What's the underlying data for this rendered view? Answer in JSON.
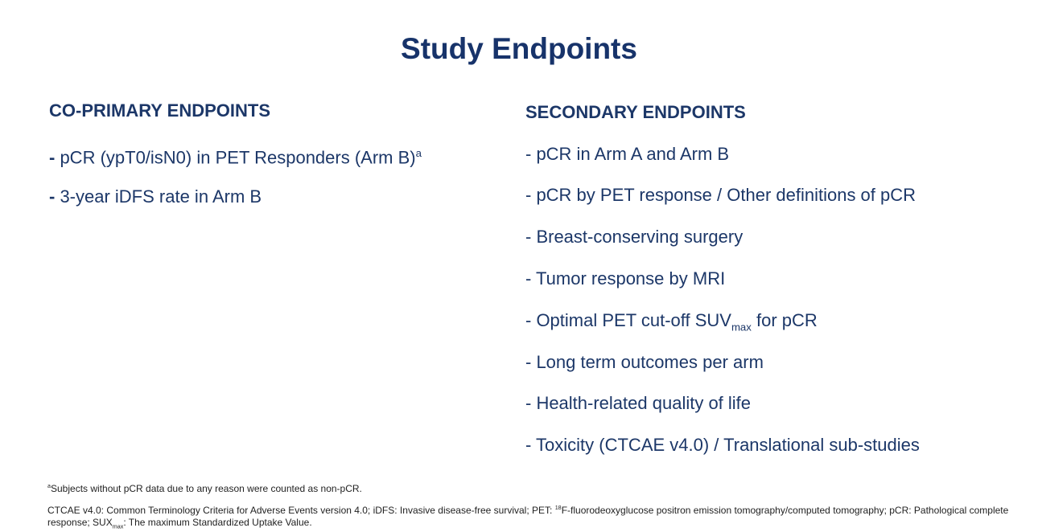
{
  "title": "Study Endpoints",
  "left": {
    "heading": "CO-PRIMARY ENDPOINTS",
    "items": [
      [
        "-",
        " pCR (ypT0/isN0) in PET Responders (Arm B)",
        "a"
      ],
      [
        "-",
        " 3-year iDFS rate in Arm B"
      ]
    ]
  },
  "right": {
    "heading": "SECONDARY ENDPOINTS",
    "items": [
      [
        "- pCR in Arm A  and Arm B"
      ],
      [
        "- pCR by PET response / Other definitions of pCR"
      ],
      [
        "- Breast-conserving surgery"
      ],
      [
        "- Tumor response by MRI"
      ],
      [
        "- Optimal PET cut-off SUV",
        "max",
        " for pCR"
      ],
      [
        "- Long term outcomes per arm"
      ],
      [
        "- Health-related quality of life"
      ],
      [
        "- Toxicity (CTCAE v4.0) / Translational sub-studies"
      ]
    ]
  },
  "footnotes": [
    [
      "a",
      "Subjects without pCR data due to any reason were counted as non-pCR."
    ],
    [
      "CTCAE v4.0: Common Terminology Criteria for Adverse Events version 4.0; iDFS: Invasive disease-free survival; PET: ",
      "18",
      "F-fluorodeoxyglucose positron emission tomography/computed tomography; pCR: Pathological complete response; SUX",
      "max",
      ": The maximum Standardized Uptake Value."
    ]
  ]
}
